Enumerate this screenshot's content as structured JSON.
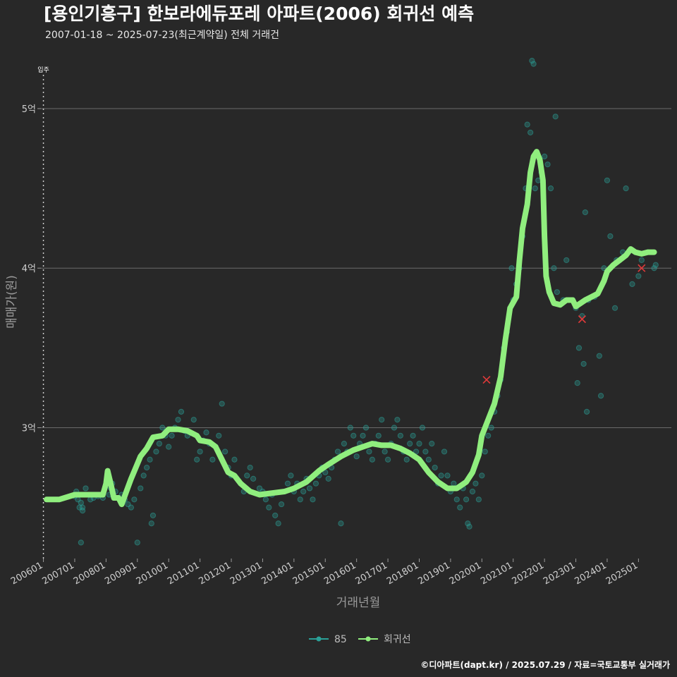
{
  "chart_data": {
    "type": "scatter",
    "title": "[용인기흥구] 한보라에듀포레 아파트(2006) 회귀선 예측",
    "subtitle": "2007-01-18 ~ 2025-07-23(최근계약일) 전체 거래건",
    "xlabel": "거래년월",
    "ylabel": "매매가(원)",
    "caption": "©디아파트(dapt.kr) / 2025.07.29 / 자료=국토교통부 실거래가",
    "annotation": "입주",
    "annotation_x": 2006.0,
    "xlim": [
      2005.92,
      2026.05
    ],
    "ylim": [
      2.18,
      5.38
    ],
    "x_ticks": [
      {
        "label": "200601",
        "value": 2006.0
      },
      {
        "label": "200701",
        "value": 2007.0
      },
      {
        "label": "200801",
        "value": 2008.0
      },
      {
        "label": "200901",
        "value": 2009.0
      },
      {
        "label": "201001",
        "value": 2010.0
      },
      {
        "label": "201101",
        "value": 2011.0
      },
      {
        "label": "201201",
        "value": 2012.0
      },
      {
        "label": "201301",
        "value": 2013.0
      },
      {
        "label": "201401",
        "value": 2014.0
      },
      {
        "label": "201501",
        "value": 2015.0
      },
      {
        "label": "201601",
        "value": 2016.0
      },
      {
        "label": "201701",
        "value": 2017.0
      },
      {
        "label": "201801",
        "value": 2018.0
      },
      {
        "label": "201901",
        "value": 2019.0
      },
      {
        "label": "202001",
        "value": 2020.0
      },
      {
        "label": "202101",
        "value": 2021.0
      },
      {
        "label": "202201",
        "value": 2022.0
      },
      {
        "label": "202301",
        "value": 2023.0
      },
      {
        "label": "202401",
        "value": 2024.0
      },
      {
        "label": "202501",
        "value": 2025.0
      }
    ],
    "y_ticks": [
      {
        "label": "3억",
        "value": 3
      },
      {
        "label": "4억",
        "value": 4
      },
      {
        "label": "5억",
        "value": 5
      }
    ],
    "legend": [
      {
        "label": "85",
        "color": "#2aa198"
      },
      {
        "label": "회귀선",
        "color": "#90ee7e"
      }
    ],
    "series": [
      {
        "name": "85",
        "color": "#2aa198",
        "points": [
          [
            2007.0,
            2.57
          ],
          [
            2007.05,
            2.6
          ],
          [
            2007.1,
            2.55
          ],
          [
            2007.15,
            2.5
          ],
          [
            2007.2,
            2.53
          ],
          [
            2007.25,
            2.48
          ],
          [
            2007.3,
            2.58
          ],
          [
            2007.35,
            2.62
          ],
          [
            2007.2,
            2.28
          ],
          [
            2007.25,
            2.5
          ],
          [
            2007.5,
            2.55
          ],
          [
            2007.6,
            2.56
          ],
          [
            2007.75,
            2.57
          ],
          [
            2007.9,
            2.56
          ],
          [
            2008.1,
            2.58
          ],
          [
            2008.15,
            2.62
          ],
          [
            2008.2,
            2.65
          ],
          [
            2008.3,
            2.6
          ],
          [
            2008.5,
            2.58
          ],
          [
            2008.6,
            2.55
          ],
          [
            2008.7,
            2.52
          ],
          [
            2008.8,
            2.5
          ],
          [
            2008.9,
            2.55
          ],
          [
            2009.0,
            2.28
          ],
          [
            2009.1,
            2.62
          ],
          [
            2009.2,
            2.7
          ],
          [
            2009.3,
            2.75
          ],
          [
            2009.4,
            2.8
          ],
          [
            2009.45,
            2.4
          ],
          [
            2009.5,
            2.45
          ],
          [
            2009.6,
            2.85
          ],
          [
            2009.7,
            2.9
          ],
          [
            2009.8,
            3.0
          ],
          [
            2009.9,
            2.95
          ],
          [
            2010.0,
            2.88
          ],
          [
            2010.1,
            2.95
          ],
          [
            2010.2,
            3.0
          ],
          [
            2010.3,
            3.05
          ],
          [
            2010.4,
            3.1
          ],
          [
            2010.5,
            2.98
          ],
          [
            2010.6,
            2.95
          ],
          [
            2010.8,
            3.05
          ],
          [
            2010.9,
            2.8
          ],
          [
            2011.0,
            2.85
          ],
          [
            2011.1,
            2.92
          ],
          [
            2011.2,
            2.97
          ],
          [
            2011.3,
            2.9
          ],
          [
            2011.4,
            2.8
          ],
          [
            2011.5,
            2.88
          ],
          [
            2011.6,
            2.95
          ],
          [
            2011.7,
            3.15
          ],
          [
            2011.8,
            2.85
          ],
          [
            2011.9,
            2.75
          ],
          [
            2012.0,
            2.7
          ],
          [
            2012.1,
            2.8
          ],
          [
            2012.3,
            2.65
          ],
          [
            2012.4,
            2.6
          ],
          [
            2012.5,
            2.7
          ],
          [
            2012.6,
            2.75
          ],
          [
            2012.7,
            2.68
          ],
          [
            2012.9,
            2.62
          ],
          [
            2013.0,
            2.6
          ],
          [
            2013.1,
            2.55
          ],
          [
            2013.2,
            2.5
          ],
          [
            2013.3,
            2.58
          ],
          [
            2013.4,
            2.45
          ],
          [
            2013.5,
            2.4
          ],
          [
            2013.6,
            2.52
          ],
          [
            2013.7,
            2.6
          ],
          [
            2013.8,
            2.65
          ],
          [
            2013.9,
            2.7
          ],
          [
            2014.0,
            2.6
          ],
          [
            2014.1,
            2.65
          ],
          [
            2014.2,
            2.55
          ],
          [
            2014.3,
            2.6
          ],
          [
            2014.4,
            2.68
          ],
          [
            2014.5,
            2.62
          ],
          [
            2014.6,
            2.55
          ],
          [
            2014.7,
            2.65
          ],
          [
            2014.8,
            2.7
          ],
          [
            2014.9,
            2.75
          ],
          [
            2015.0,
            2.72
          ],
          [
            2015.1,
            2.68
          ],
          [
            2015.2,
            2.75
          ],
          [
            2015.3,
            2.8
          ],
          [
            2015.4,
            2.85
          ],
          [
            2015.5,
            2.4
          ],
          [
            2015.6,
            2.9
          ],
          [
            2015.7,
            2.85
          ],
          [
            2015.8,
            3.0
          ],
          [
            2015.9,
            2.95
          ],
          [
            2016.0,
            2.82
          ],
          [
            2016.1,
            2.9
          ],
          [
            2016.2,
            2.95
          ],
          [
            2016.3,
            3.0
          ],
          [
            2016.4,
            2.85
          ],
          [
            2016.5,
            2.8
          ],
          [
            2016.6,
            2.9
          ],
          [
            2016.7,
            2.95
          ],
          [
            2016.8,
            3.05
          ],
          [
            2016.9,
            2.85
          ],
          [
            2017.0,
            2.8
          ],
          [
            2017.1,
            2.9
          ],
          [
            2017.2,
            3.0
          ],
          [
            2017.3,
            3.05
          ],
          [
            2017.4,
            2.95
          ],
          [
            2017.5,
            2.85
          ],
          [
            2017.6,
            2.8
          ],
          [
            2017.7,
            2.9
          ],
          [
            2017.8,
            2.95
          ],
          [
            2017.9,
            2.85
          ],
          [
            2018.0,
            2.9
          ],
          [
            2018.1,
            3.0
          ],
          [
            2018.2,
            2.85
          ],
          [
            2018.3,
            2.8
          ],
          [
            2018.4,
            2.9
          ],
          [
            2018.5,
            2.75
          ],
          [
            2018.6,
            2.65
          ],
          [
            2018.7,
            2.7
          ],
          [
            2018.8,
            2.85
          ],
          [
            2018.9,
            2.7
          ],
          [
            2019.0,
            2.6
          ],
          [
            2019.1,
            2.65
          ],
          [
            2019.2,
            2.55
          ],
          [
            2019.3,
            2.5
          ],
          [
            2019.4,
            2.62
          ],
          [
            2019.5,
            2.55
          ],
          [
            2019.55,
            2.4
          ],
          [
            2019.6,
            2.38
          ],
          [
            2019.7,
            2.6
          ],
          [
            2019.8,
            2.65
          ],
          [
            2019.9,
            2.55
          ],
          [
            2020.0,
            2.7
          ],
          [
            2020.1,
            2.85
          ],
          [
            2020.2,
            2.95
          ],
          [
            2020.3,
            3.0
          ],
          [
            2020.4,
            3.1
          ],
          [
            2020.5,
            3.2
          ],
          [
            2020.6,
            3.3
          ],
          [
            2020.7,
            3.5
          ],
          [
            2020.8,
            3.6
          ],
          [
            2020.9,
            3.75
          ],
          [
            2020.95,
            4.0
          ],
          [
            2021.0,
            3.8
          ],
          [
            2021.1,
            3.9
          ],
          [
            2021.2,
            4.0
          ],
          [
            2021.3,
            4.2
          ],
          [
            2021.4,
            4.5
          ],
          [
            2021.45,
            4.9
          ],
          [
            2021.5,
            4.5
          ],
          [
            2021.55,
            4.85
          ],
          [
            2021.6,
            5.3
          ],
          [
            2021.65,
            5.28
          ],
          [
            2021.7,
            4.5
          ],
          [
            2021.8,
            4.55
          ],
          [
            2021.9,
            4.6
          ],
          [
            2022.0,
            4.7
          ],
          [
            2022.1,
            4.65
          ],
          [
            2022.2,
            4.5
          ],
          [
            2022.3,
            4.0
          ],
          [
            2022.35,
            4.95
          ],
          [
            2022.4,
            3.85
          ],
          [
            2022.6,
            3.8
          ],
          [
            2022.7,
            4.05
          ],
          [
            2022.9,
            3.8
          ],
          [
            2023.0,
            3.75
          ],
          [
            2023.05,
            3.28
          ],
          [
            2023.1,
            3.5
          ],
          [
            2023.2,
            3.7
          ],
          [
            2023.25,
            3.4
          ],
          [
            2023.3,
            4.35
          ],
          [
            2023.35,
            3.1
          ],
          [
            2023.4,
            3.8
          ],
          [
            2023.6,
            3.82
          ],
          [
            2023.75,
            3.45
          ],
          [
            2023.8,
            3.2
          ],
          [
            2023.9,
            4.0
          ],
          [
            2024.0,
            4.55
          ],
          [
            2024.1,
            4.2
          ],
          [
            2024.25,
            3.75
          ],
          [
            2024.3,
            4.05
          ],
          [
            2024.5,
            4.1
          ],
          [
            2024.6,
            4.5
          ],
          [
            2024.8,
            3.9
          ],
          [
            2025.0,
            3.95
          ],
          [
            2025.1,
            4.05
          ],
          [
            2025.3,
            4.1
          ],
          [
            2025.5,
            4.0
          ],
          [
            2025.55,
            4.02
          ]
        ]
      },
      {
        "name": "회귀선",
        "color": "#90ee7e",
        "points": [
          [
            2006.1,
            2.55
          ],
          [
            2006.5,
            2.55
          ],
          [
            2007.0,
            2.58
          ],
          [
            2007.5,
            2.58
          ],
          [
            2007.9,
            2.58
          ],
          [
            2008.0,
            2.65
          ],
          [
            2008.05,
            2.73
          ],
          [
            2008.15,
            2.65
          ],
          [
            2008.25,
            2.56
          ],
          [
            2008.4,
            2.56
          ],
          [
            2008.5,
            2.52
          ],
          [
            2008.65,
            2.6
          ],
          [
            2008.8,
            2.68
          ],
          [
            2008.95,
            2.75
          ],
          [
            2009.1,
            2.82
          ],
          [
            2009.3,
            2.87
          ],
          [
            2009.5,
            2.94
          ],
          [
            2009.8,
            2.95
          ],
          [
            2010.0,
            2.99
          ],
          [
            2010.3,
            2.99
          ],
          [
            2010.6,
            2.98
          ],
          [
            2010.9,
            2.95
          ],
          [
            2011.0,
            2.92
          ],
          [
            2011.3,
            2.91
          ],
          [
            2011.5,
            2.88
          ],
          [
            2011.7,
            2.8
          ],
          [
            2011.9,
            2.72
          ],
          [
            2012.1,
            2.7
          ],
          [
            2012.3,
            2.65
          ],
          [
            2012.6,
            2.6
          ],
          [
            2012.9,
            2.58
          ],
          [
            2013.3,
            2.59
          ],
          [
            2013.7,
            2.6
          ],
          [
            2014.0,
            2.62
          ],
          [
            2014.4,
            2.66
          ],
          [
            2014.8,
            2.73
          ],
          [
            2015.1,
            2.77
          ],
          [
            2015.5,
            2.82
          ],
          [
            2015.9,
            2.86
          ],
          [
            2016.2,
            2.88
          ],
          [
            2016.5,
            2.9
          ],
          [
            2016.8,
            2.89
          ],
          [
            2017.1,
            2.89
          ],
          [
            2017.4,
            2.87
          ],
          [
            2017.7,
            2.84
          ],
          [
            2018.0,
            2.8
          ],
          [
            2018.3,
            2.72
          ],
          [
            2018.6,
            2.66
          ],
          [
            2018.9,
            2.62
          ],
          [
            2019.2,
            2.62
          ],
          [
            2019.5,
            2.66
          ],
          [
            2019.7,
            2.72
          ],
          [
            2019.9,
            2.83
          ],
          [
            2020.0,
            2.95
          ],
          [
            2020.2,
            3.05
          ],
          [
            2020.4,
            3.15
          ],
          [
            2020.6,
            3.32
          ],
          [
            2020.75,
            3.55
          ],
          [
            2020.9,
            3.75
          ],
          [
            2021.1,
            3.82
          ],
          [
            2021.2,
            4.05
          ],
          [
            2021.3,
            4.25
          ],
          [
            2021.45,
            4.4
          ],
          [
            2021.55,
            4.6
          ],
          [
            2021.65,
            4.7
          ],
          [
            2021.75,
            4.73
          ],
          [
            2021.85,
            4.68
          ],
          [
            2021.95,
            4.55
          ],
          [
            2022.0,
            4.2
          ],
          [
            2022.05,
            3.95
          ],
          [
            2022.15,
            3.85
          ],
          [
            2022.3,
            3.78
          ],
          [
            2022.5,
            3.77
          ],
          [
            2022.7,
            3.8
          ],
          [
            2022.9,
            3.8
          ],
          [
            2023.0,
            3.76
          ],
          [
            2023.15,
            3.78
          ],
          [
            2023.3,
            3.8
          ],
          [
            2023.5,
            3.82
          ],
          [
            2023.7,
            3.84
          ],
          [
            2023.9,
            3.92
          ],
          [
            2024.0,
            3.98
          ],
          [
            2024.2,
            4.02
          ],
          [
            2024.4,
            4.05
          ],
          [
            2024.6,
            4.08
          ],
          [
            2024.75,
            4.12
          ],
          [
            2024.9,
            4.1
          ],
          [
            2025.1,
            4.09
          ],
          [
            2025.3,
            4.1
          ],
          [
            2025.5,
            4.1
          ]
        ]
      }
    ],
    "highlights": [
      [
        2020.15,
        3.3
      ],
      [
        2023.2,
        3.68
      ],
      [
        2025.1,
        4.0
      ]
    ]
  }
}
